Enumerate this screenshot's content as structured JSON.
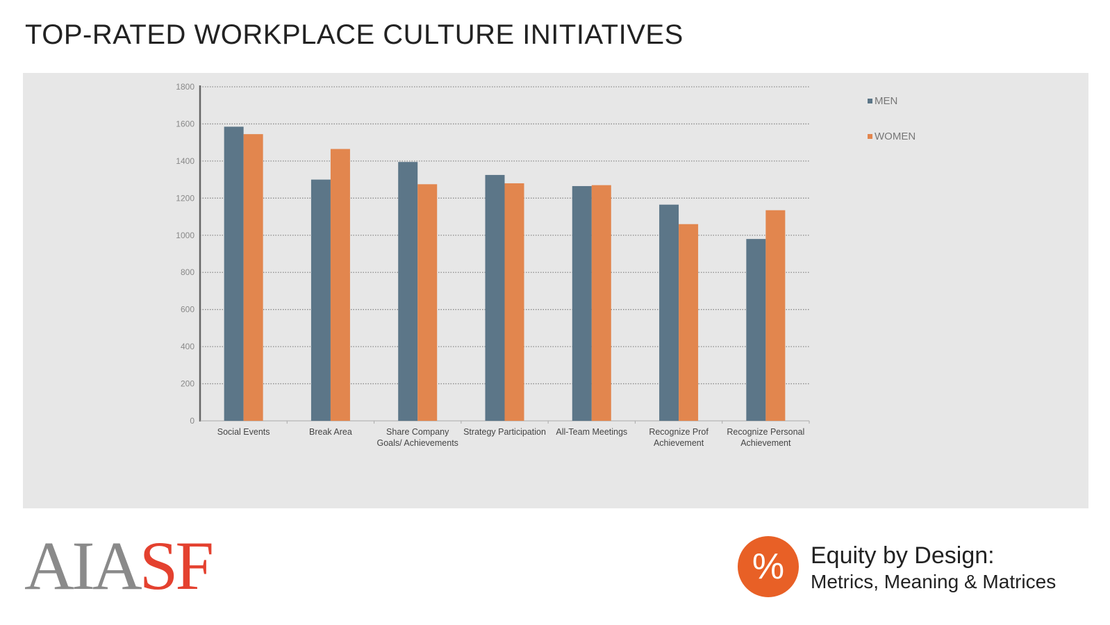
{
  "title": "TOP-RATED WORKPLACE CULTURE INITIATIVES",
  "colors": {
    "men": "#5c7688",
    "women": "#e2864e",
    "panel": "#e7e7e7",
    "accent": "#e4412f",
    "badge": "#e86026"
  },
  "logo": {
    "aia": "AIA",
    "sf": "SF"
  },
  "badge": {
    "symbol": "%"
  },
  "subtitle": {
    "line1": "Equity by Design:",
    "line2": "Metrics, Meaning & Matrices"
  },
  "chart_data": {
    "type": "bar",
    "categories": [
      [
        "Social Events"
      ],
      [
        "Break Area"
      ],
      [
        "Share Company",
        "Goals/ Achievements"
      ],
      [
        "Strategy Participation"
      ],
      [
        "All-Team Meetings"
      ],
      [
        "Recognize Prof",
        "Achievement"
      ],
      [
        "Recognize Personal",
        "Achievement"
      ]
    ],
    "series": [
      {
        "name": "MEN",
        "values": [
          1585,
          1300,
          1395,
          1325,
          1265,
          1165,
          980
        ]
      },
      {
        "name": "WOMEN",
        "values": [
          1545,
          1465,
          1275,
          1280,
          1270,
          1060,
          1135
        ]
      }
    ],
    "ylim": [
      0,
      1800
    ],
    "yticks": [
      0,
      200,
      400,
      600,
      800,
      1000,
      1200,
      1400,
      1600,
      1800
    ],
    "grid": true,
    "legend_position": "top-right"
  }
}
